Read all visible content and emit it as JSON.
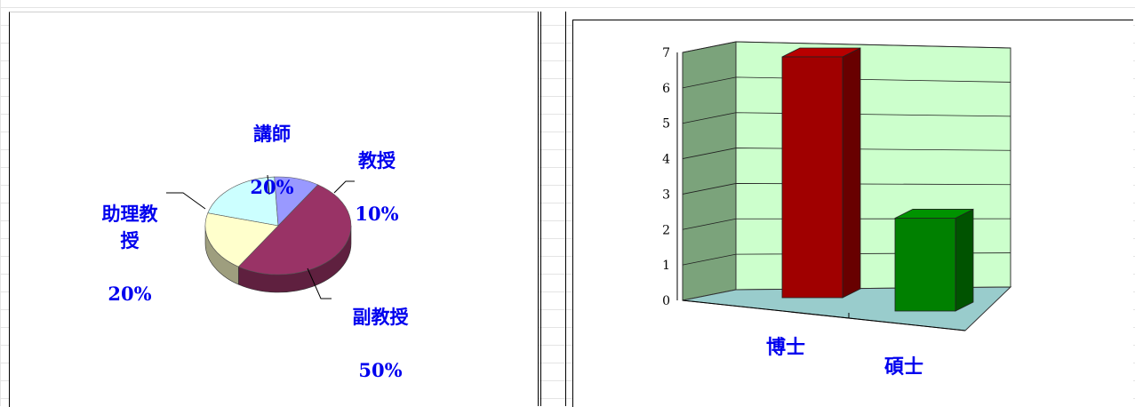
{
  "chart_data": [
    {
      "type": "pie",
      "labels": [
        "講師",
        "教授",
        "副教授",
        "助理教授"
      ],
      "values": [
        20,
        10,
        50,
        20
      ],
      "percent_labels": [
        "20%",
        "10%",
        "50%",
        "20%"
      ],
      "colors": [
        "#ccffff",
        "#9999ff",
        "#993366",
        "#ffffcc"
      ],
      "legend": "none"
    },
    {
      "type": "bar",
      "categories": [
        "博士",
        "碩士"
      ],
      "values": [
        7,
        3
      ],
      "colors": [
        "#a00000",
        "#008000"
      ],
      "ylim": [
        0,
        7
      ],
      "yticks": [
        "0",
        "1",
        "2",
        "3",
        "4",
        "5",
        "6",
        "7"
      ],
      "grid": true,
      "wall_color": "#ccffcc",
      "floor_color": "#99cccc"
    }
  ]
}
